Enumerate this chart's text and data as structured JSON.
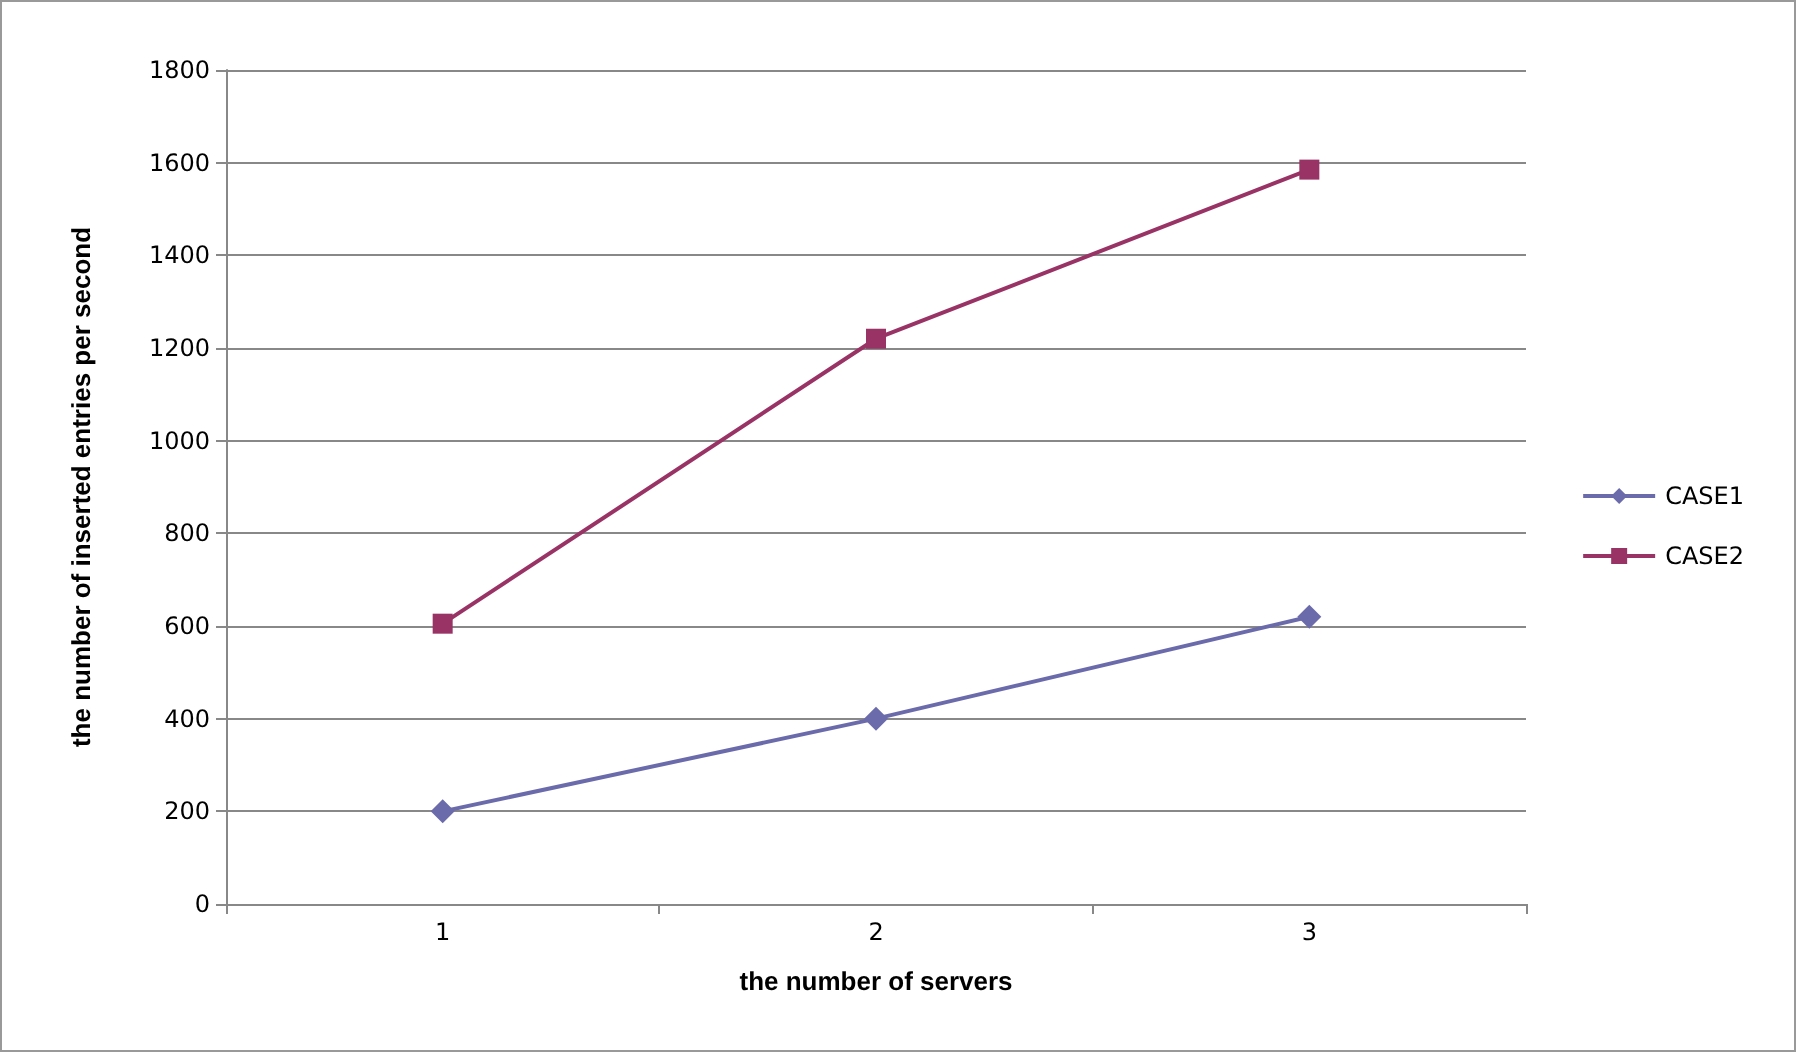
{
  "chart_data": {
    "type": "line",
    "xlabel": "the number of servers",
    "ylabel": "the number of inserted entries per second",
    "categories": [
      "1",
      "2",
      "3"
    ],
    "series": [
      {
        "name": "CASE1",
        "color": "#6b6bab",
        "values": [
          200,
          400,
          620
        ],
        "marker": "diamond"
      },
      {
        "name": "CASE2",
        "color": "#993366",
        "values": [
          605,
          1220,
          1585
        ],
        "marker": "square"
      }
    ],
    "ylim": [
      0,
      1800
    ],
    "yticks": [
      0,
      200,
      400,
      600,
      800,
      1000,
      1200,
      1400,
      1600,
      1800
    ],
    "grid": "y",
    "legend": "right",
    "line_style": "solid"
  }
}
